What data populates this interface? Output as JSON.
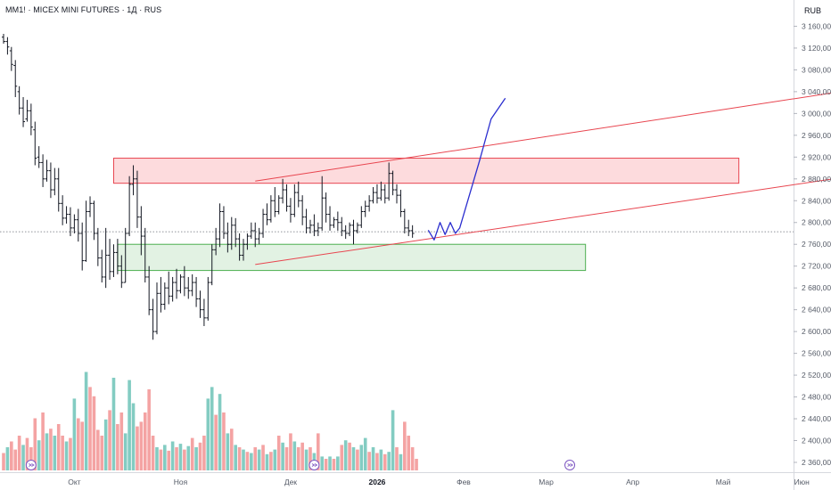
{
  "header": {
    "title": "MM1! · MICEX MINI FUTURES · 1Д · RUS",
    "currency": "RUB"
  },
  "icons": [
    "events-icon",
    "events-icon",
    "events-icon"
  ],
  "chart_data": {
    "type": "candlestick",
    "title": "MM1! · MICEX MINI FUTURES · 1Д · RUS",
    "y_unit": "RUB",
    "y_ticks": [
      "3 160,00",
      "3 120,00",
      "3 080,00",
      "3 040,00",
      "3 000,00",
      "2 960,00",
      "2 920,00",
      "2 880,00",
      "2 840,00",
      "2 800,00",
      "2 760,00",
      "2 720,00",
      "2 680,00",
      "2 640,00",
      "2 600,00",
      "2 560,00",
      "2 520,00",
      "2 480,00",
      "2 440,00",
      "2 400,00",
      "2 360,00"
    ],
    "y_tick_values": [
      3160,
      3120,
      3080,
      3040,
      3000,
      2960,
      2920,
      2880,
      2840,
      2800,
      2760,
      2720,
      2680,
      2640,
      2600,
      2560,
      2520,
      2480,
      2440,
      2400,
      2360
    ],
    "ylim": [
      2342,
      3182
    ],
    "x_ticks": [
      "Окт",
      "Ноя",
      "Дек",
      "2026",
      "Фев",
      "Мар",
      "Апр",
      "Май",
      "Июн"
    ],
    "x_tick_bar_index": [
      18,
      45,
      73,
      95,
      117,
      138,
      160,
      183,
      203
    ],
    "x_tick_bold": [
      false,
      false,
      false,
      true,
      false,
      false,
      false,
      false,
      false
    ],
    "current_price": 2783,
    "price_bars": [
      {
        "o": 3140,
        "h": 3146,
        "c": 3132,
        "l": 3128
      },
      {
        "o": 3132,
        "h": 3140,
        "c": 3122,
        "l": 3108
      },
      {
        "o": 3115,
        "h": 3122,
        "c": 3090,
        "l": 3078
      },
      {
        "o": 3088,
        "h": 3098,
        "c": 3050,
        "l": 3030
      },
      {
        "o": 3040,
        "h": 3050,
        "c": 3010,
        "l": 2998
      },
      {
        "o": 3010,
        "h": 3030,
        "c": 2985,
        "l": 2975
      },
      {
        "o": 2990,
        "h": 3025,
        "c": 3005,
        "l": 2985
      },
      {
        "o": 3005,
        "h": 3018,
        "c": 2975,
        "l": 2960
      },
      {
        "o": 2970,
        "h": 2985,
        "c": 2918,
        "l": 2905
      },
      {
        "o": 2920,
        "h": 2940,
        "c": 2910,
        "l": 2900
      },
      {
        "o": 2910,
        "h": 2925,
        "c": 2880,
        "l": 2865
      },
      {
        "o": 2880,
        "h": 2915,
        "c": 2895,
        "l": 2875
      },
      {
        "o": 2895,
        "h": 2910,
        "c": 2860,
        "l": 2845
      },
      {
        "o": 2860,
        "h": 2900,
        "c": 2880,
        "l": 2850
      },
      {
        "o": 2880,
        "h": 2900,
        "c": 2835,
        "l": 2820
      },
      {
        "o": 2835,
        "h": 2850,
        "c": 2808,
        "l": 2795
      },
      {
        "o": 2808,
        "h": 2830,
        "c": 2815,
        "l": 2798
      },
      {
        "o": 2815,
        "h": 2828,
        "c": 2790,
        "l": 2775
      },
      {
        "o": 2790,
        "h": 2815,
        "c": 2805,
        "l": 2780
      },
      {
        "o": 2805,
        "h": 2825,
        "c": 2780,
        "l": 2765
      },
      {
        "o": 2780,
        "h": 2800,
        "c": 2730,
        "l": 2712
      },
      {
        "o": 2730,
        "h": 2840,
        "c": 2820,
        "l": 2728
      },
      {
        "o": 2820,
        "h": 2848,
        "c": 2835,
        "l": 2810
      },
      {
        "o": 2835,
        "h": 2840,
        "c": 2780,
        "l": 2768
      },
      {
        "o": 2780,
        "h": 2790,
        "c": 2735,
        "l": 2720
      },
      {
        "o": 2735,
        "h": 2750,
        "c": 2700,
        "l": 2690
      },
      {
        "o": 2700,
        "h": 2790,
        "c": 2740,
        "l": 2680
      },
      {
        "o": 2740,
        "h": 2770,
        "c": 2710,
        "l": 2695
      },
      {
        "o": 2710,
        "h": 2760,
        "c": 2745,
        "l": 2700
      },
      {
        "o": 2745,
        "h": 2770,
        "c": 2720,
        "l": 2705
      },
      {
        "o": 2720,
        "h": 2740,
        "c": 2690,
        "l": 2680
      },
      {
        "o": 2690,
        "h": 2790,
        "c": 2780,
        "l": 2690
      },
      {
        "o": 2780,
        "h": 2885,
        "c": 2870,
        "l": 2775
      },
      {
        "o": 2870,
        "h": 2905,
        "c": 2880,
        "l": 2850
      },
      {
        "o": 2880,
        "h": 2895,
        "c": 2810,
        "l": 2790
      },
      {
        "o": 2810,
        "h": 2830,
        "c": 2775,
        "l": 2740
      },
      {
        "o": 2775,
        "h": 2790,
        "c": 2700,
        "l": 2690
      },
      {
        "o": 2700,
        "h": 2720,
        "c": 2640,
        "l": 2630
      },
      {
        "o": 2640,
        "h": 2660,
        "c": 2600,
        "l": 2585
      },
      {
        "o": 2600,
        "h": 2690,
        "c": 2670,
        "l": 2595
      },
      {
        "o": 2670,
        "h": 2700,
        "c": 2650,
        "l": 2635
      },
      {
        "o": 2650,
        "h": 2690,
        "c": 2680,
        "l": 2640
      },
      {
        "o": 2680,
        "h": 2710,
        "c": 2665,
        "l": 2650
      },
      {
        "o": 2665,
        "h": 2700,
        "c": 2690,
        "l": 2655
      },
      {
        "o": 2690,
        "h": 2715,
        "c": 2675,
        "l": 2660
      },
      {
        "o": 2675,
        "h": 2705,
        "c": 2700,
        "l": 2670
      },
      {
        "o": 2700,
        "h": 2720,
        "c": 2680,
        "l": 2665
      },
      {
        "o": 2680,
        "h": 2700,
        "c": 2675,
        "l": 2660
      },
      {
        "o": 2675,
        "h": 2705,
        "c": 2690,
        "l": 2665
      },
      {
        "o": 2690,
        "h": 2700,
        "c": 2660,
        "l": 2645
      },
      {
        "o": 2660,
        "h": 2675,
        "c": 2640,
        "l": 2625
      },
      {
        "o": 2640,
        "h": 2660,
        "c": 2625,
        "l": 2610
      },
      {
        "o": 2625,
        "h": 2700,
        "c": 2690,
        "l": 2620
      },
      {
        "o": 2690,
        "h": 2760,
        "c": 2750,
        "l": 2685
      },
      {
        "o": 2750,
        "h": 2790,
        "c": 2770,
        "l": 2740
      },
      {
        "o": 2770,
        "h": 2835,
        "c": 2820,
        "l": 2755
      },
      {
        "o": 2820,
        "h": 2830,
        "c": 2780,
        "l": 2770
      },
      {
        "o": 2780,
        "h": 2800,
        "c": 2760,
        "l": 2745
      },
      {
        "o": 2760,
        "h": 2810,
        "c": 2795,
        "l": 2750
      },
      {
        "o": 2795,
        "h": 2808,
        "c": 2770,
        "l": 2755
      },
      {
        "o": 2770,
        "h": 2780,
        "c": 2740,
        "l": 2730
      },
      {
        "o": 2740,
        "h": 2770,
        "c": 2760,
        "l": 2730
      },
      {
        "o": 2760,
        "h": 2780,
        "c": 2775,
        "l": 2750
      },
      {
        "o": 2775,
        "h": 2800,
        "c": 2785,
        "l": 2770
      },
      {
        "o": 2785,
        "h": 2800,
        "c": 2770,
        "l": 2755
      },
      {
        "o": 2770,
        "h": 2790,
        "c": 2780,
        "l": 2760
      },
      {
        "o": 2780,
        "h": 2825,
        "c": 2815,
        "l": 2772
      },
      {
        "o": 2815,
        "h": 2835,
        "c": 2805,
        "l": 2795
      },
      {
        "o": 2805,
        "h": 2850,
        "c": 2840,
        "l": 2800
      },
      {
        "o": 2840,
        "h": 2865,
        "c": 2820,
        "l": 2810
      },
      {
        "o": 2820,
        "h": 2850,
        "c": 2845,
        "l": 2815
      },
      {
        "o": 2845,
        "h": 2880,
        "c": 2860,
        "l": 2835
      },
      {
        "o": 2860,
        "h": 2870,
        "c": 2830,
        "l": 2820
      },
      {
        "o": 2830,
        "h": 2845,
        "c": 2815,
        "l": 2800
      },
      {
        "o": 2815,
        "h": 2870,
        "c": 2855,
        "l": 2810
      },
      {
        "o": 2855,
        "h": 2875,
        "c": 2840,
        "l": 2828
      },
      {
        "o": 2840,
        "h": 2850,
        "c": 2810,
        "l": 2795
      },
      {
        "o": 2810,
        "h": 2825,
        "c": 2790,
        "l": 2780
      },
      {
        "o": 2790,
        "h": 2805,
        "c": 2795,
        "l": 2780
      },
      {
        "o": 2795,
        "h": 2815,
        "c": 2785,
        "l": 2775
      },
      {
        "o": 2785,
        "h": 2800,
        "c": 2790,
        "l": 2775
      },
      {
        "o": 2790,
        "h": 2885,
        "c": 2845,
        "l": 2785
      },
      {
        "o": 2845,
        "h": 2855,
        "c": 2815,
        "l": 2800
      },
      {
        "o": 2815,
        "h": 2830,
        "c": 2795,
        "l": 2785
      },
      {
        "o": 2795,
        "h": 2810,
        "c": 2805,
        "l": 2790
      },
      {
        "o": 2805,
        "h": 2820,
        "c": 2800,
        "l": 2785
      },
      {
        "o": 2800,
        "h": 2810,
        "c": 2785,
        "l": 2775
      },
      {
        "o": 2785,
        "h": 2795,
        "c": 2780,
        "l": 2770
      },
      {
        "o": 2780,
        "h": 2800,
        "c": 2795,
        "l": 2775
      },
      {
        "o": 2795,
        "h": 2805,
        "c": 2785,
        "l": 2760
      },
      {
        "o": 2785,
        "h": 2800,
        "c": 2795,
        "l": 2780
      },
      {
        "o": 2795,
        "h": 2830,
        "c": 2820,
        "l": 2790
      },
      {
        "o": 2820,
        "h": 2840,
        "c": 2830,
        "l": 2810
      },
      {
        "o": 2830,
        "h": 2850,
        "c": 2840,
        "l": 2820
      },
      {
        "o": 2840,
        "h": 2865,
        "c": 2855,
        "l": 2835
      },
      {
        "o": 2855,
        "h": 2870,
        "c": 2845,
        "l": 2835
      },
      {
        "o": 2845,
        "h": 2875,
        "c": 2860,
        "l": 2840
      },
      {
        "o": 2860,
        "h": 2870,
        "c": 2845,
        "l": 2835
      },
      {
        "o": 2845,
        "h": 2910,
        "c": 2890,
        "l": 2840
      },
      {
        "o": 2890,
        "h": 2895,
        "c": 2860,
        "l": 2850
      },
      {
        "o": 2860,
        "h": 2870,
        "c": 2850,
        "l": 2835
      },
      {
        "o": 2850,
        "h": 2860,
        "c": 2820,
        "l": 2810
      },
      {
        "o": 2820,
        "h": 2825,
        "c": 2790,
        "l": 2780
      },
      {
        "o": 2790,
        "h": 2805,
        "c": 2785,
        "l": 2775
      },
      {
        "o": 2785,
        "h": 2795,
        "c": 2780,
        "l": 2772
      }
    ],
    "volume_bars": [
      {
        "v": 0.15,
        "up": false
      },
      {
        "v": 0.2,
        "up": true
      },
      {
        "v": 0.25,
        "up": false
      },
      {
        "v": 0.18,
        "up": false
      },
      {
        "v": 0.3,
        "up": false
      },
      {
        "v": 0.22,
        "up": true
      },
      {
        "v": 0.28,
        "up": false
      },
      {
        "v": 0.2,
        "up": false
      },
      {
        "v": 0.45,
        "up": false
      },
      {
        "v": 0.26,
        "up": true
      },
      {
        "v": 0.5,
        "up": false
      },
      {
        "v": 0.32,
        "up": true
      },
      {
        "v": 0.36,
        "up": false
      },
      {
        "v": 0.3,
        "up": true
      },
      {
        "v": 0.4,
        "up": false
      },
      {
        "v": 0.3,
        "up": false
      },
      {
        "v": 0.25,
        "up": true
      },
      {
        "v": 0.28,
        "up": false
      },
      {
        "v": 0.62,
        "up": true
      },
      {
        "v": 0.45,
        "up": false
      },
      {
        "v": 0.42,
        "up": false
      },
      {
        "v": 0.85,
        "up": true
      },
      {
        "v": 0.72,
        "up": false
      },
      {
        "v": 0.64,
        "up": false
      },
      {
        "v": 0.35,
        "up": false
      },
      {
        "v": 0.3,
        "up": false
      },
      {
        "v": 0.44,
        "up": true
      },
      {
        "v": 0.52,
        "up": false
      },
      {
        "v": 0.8,
        "up": true
      },
      {
        "v": 0.4,
        "up": false
      },
      {
        "v": 0.5,
        "up": false
      },
      {
        "v": 0.32,
        "up": true
      },
      {
        "v": 0.78,
        "up": true
      },
      {
        "v": 0.58,
        "up": true
      },
      {
        "v": 0.38,
        "up": false
      },
      {
        "v": 0.42,
        "up": false
      },
      {
        "v": 0.5,
        "up": false
      },
      {
        "v": 0.7,
        "up": false
      },
      {
        "v": 0.3,
        "up": false
      },
      {
        "v": 0.2,
        "up": true
      },
      {
        "v": 0.18,
        "up": false
      },
      {
        "v": 0.22,
        "up": true
      },
      {
        "v": 0.17,
        "up": false
      },
      {
        "v": 0.25,
        "up": true
      },
      {
        "v": 0.2,
        "up": false
      },
      {
        "v": 0.23,
        "up": true
      },
      {
        "v": 0.18,
        "up": false
      },
      {
        "v": 0.21,
        "up": true
      },
      {
        "v": 0.28,
        "up": false
      },
      {
        "v": 0.2,
        "up": true
      },
      {
        "v": 0.24,
        "up": false
      },
      {
        "v": 0.3,
        "up": false
      },
      {
        "v": 0.62,
        "up": true
      },
      {
        "v": 0.72,
        "up": true
      },
      {
        "v": 0.48,
        "up": false
      },
      {
        "v": 0.66,
        "up": true
      },
      {
        "v": 0.5,
        "up": false
      },
      {
        "v": 0.32,
        "up": true
      },
      {
        "v": 0.36,
        "up": false
      },
      {
        "v": 0.22,
        "up": true
      },
      {
        "v": 0.2,
        "up": false
      },
      {
        "v": 0.18,
        "up": true
      },
      {
        "v": 0.16,
        "up": false
      },
      {
        "v": 0.15,
        "up": true
      },
      {
        "v": 0.2,
        "up": false
      },
      {
        "v": 0.18,
        "up": true
      },
      {
        "v": 0.22,
        "up": false
      },
      {
        "v": 0.14,
        "up": true
      },
      {
        "v": 0.16,
        "up": false
      },
      {
        "v": 0.18,
        "up": true
      },
      {
        "v": 0.3,
        "up": false
      },
      {
        "v": 0.24,
        "up": true
      },
      {
        "v": 0.2,
        "up": false
      },
      {
        "v": 0.32,
        "up": false
      },
      {
        "v": 0.25,
        "up": true
      },
      {
        "v": 0.2,
        "up": false
      },
      {
        "v": 0.24,
        "up": false
      },
      {
        "v": 0.18,
        "up": true
      },
      {
        "v": 0.2,
        "up": false
      },
      {
        "v": 0.15,
        "up": true
      },
      {
        "v": 0.32,
        "up": false
      },
      {
        "v": 0.12,
        "up": true
      },
      {
        "v": 0.1,
        "up": false
      },
      {
        "v": 0.12,
        "up": true
      },
      {
        "v": 0.1,
        "up": false
      },
      {
        "v": 0.12,
        "up": true
      },
      {
        "v": 0.22,
        "up": false
      },
      {
        "v": 0.26,
        "up": true
      },
      {
        "v": 0.24,
        "up": false
      },
      {
        "v": 0.2,
        "up": true
      },
      {
        "v": 0.18,
        "up": false
      },
      {
        "v": 0.22,
        "up": true
      },
      {
        "v": 0.28,
        "up": true
      },
      {
        "v": 0.16,
        "up": false
      },
      {
        "v": 0.2,
        "up": true
      },
      {
        "v": 0.15,
        "up": false
      },
      {
        "v": 0.18,
        "up": true
      },
      {
        "v": 0.14,
        "up": false
      },
      {
        "v": 0.16,
        "up": true
      },
      {
        "v": 0.52,
        "up": true
      },
      {
        "v": 0.2,
        "up": false
      },
      {
        "v": 0.14,
        "up": true
      },
      {
        "v": 0.42,
        "up": false
      },
      {
        "v": 0.3,
        "up": false
      },
      {
        "v": 0.2,
        "up": false
      },
      {
        "v": 0.1,
        "up": false
      }
    ],
    "annotations": {
      "red_zone": {
        "bar_start": 28,
        "bar_end": 187,
        "price_top": 2918,
        "price_bottom": 2872
      },
      "green_zone": {
        "bar_start": 29,
        "bar_end": 148,
        "price_top": 2760,
        "price_bottom": 2712
      },
      "channel_upper": {
        "bar1": 64,
        "price1": 2876,
        "bar2": 211,
        "price2": 3038
      },
      "channel_lower": {
        "bar1": 64,
        "price1": 2723,
        "bar2": 211,
        "price2": 2880
      },
      "forecast_path": [
        {
          "bar": 108,
          "price": 2786
        },
        {
          "bar": 109.5,
          "price": 2768
        },
        {
          "bar": 111,
          "price": 2800
        },
        {
          "bar": 112.3,
          "price": 2778
        },
        {
          "bar": 113.6,
          "price": 2800
        },
        {
          "bar": 114.9,
          "price": 2780
        },
        {
          "bar": 116,
          "price": 2790
        },
        {
          "bar": 121,
          "price": 2912
        },
        {
          "bar": 124,
          "price": 2990
        },
        {
          "bar": 127.6,
          "price": 3028
        }
      ]
    },
    "colors": {
      "up_volume": "#83ccc2",
      "down_volume": "#f4a3a3",
      "red_line": "#e8454f",
      "red_fill": "rgba(242,54,69,0.18)",
      "green_line": "#4caf50",
      "green_fill": "rgba(76,175,80,0.16)",
      "forecast": "#2b2ecf",
      "bar": "#131722",
      "icon": "#7e57c2"
    }
  }
}
